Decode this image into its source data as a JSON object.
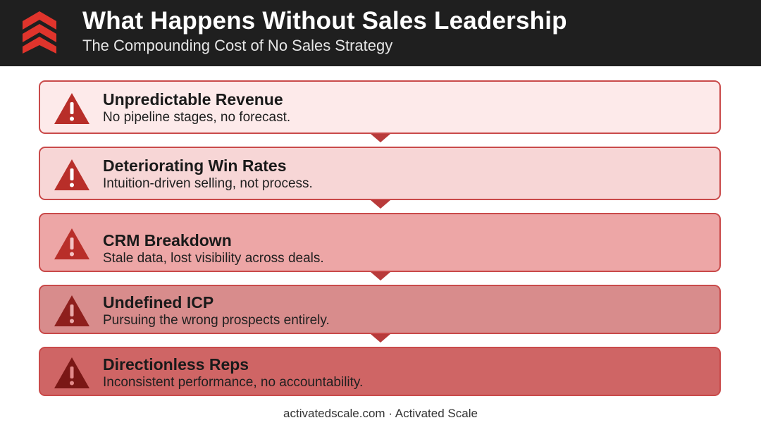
{
  "header": {
    "title": "What Happens Without Sales Leadership",
    "subtitle": "The Compounding Cost of No Sales Strategy",
    "logo_icon": "chevrons-up-logo-icon"
  },
  "items": [
    {
      "title": "Unpredictable Revenue",
      "description": "No pipeline stages, no forecast.",
      "icon": "warning-icon"
    },
    {
      "title": "Deteriorating Win Rates",
      "description": "Intuition-driven selling, not process.",
      "icon": "warning-icon"
    },
    {
      "title": "CRM Breakdown",
      "description": "Stale data, lost visibility across deals.",
      "icon": "warning-icon"
    },
    {
      "title": "Undefined ICP",
      "description": "Pursuing the wrong prospects entirely.",
      "icon": "warning-icon"
    },
    {
      "title": "Directionless Reps",
      "description": "Inconsistent performance, no accountability.",
      "icon": "warning-icon"
    }
  ],
  "footer": {
    "text": "activatedscale.com · Activated Scale"
  },
  "colors": {
    "header_bg": "#1f1f1f",
    "accent": "#c0302a",
    "card_fills": [
      "#fdeaea",
      "#f7d6d6",
      "#eda6a6",
      "#d88c8c",
      "#cf6565"
    ],
    "border": "#c94a4a"
  }
}
